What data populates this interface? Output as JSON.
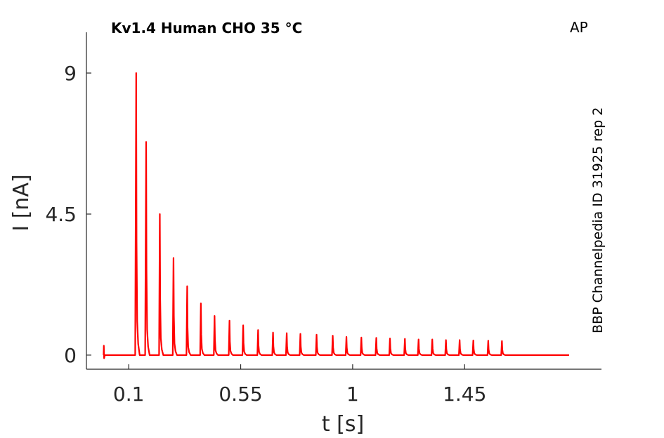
{
  "chart_data": {
    "type": "line",
    "title": "Kv1.4  Human  CHO  35 °C",
    "corner_label": "AP",
    "side_label": "BBP Channelpedia ID 31925 rep 2",
    "xlabel": "t [s]",
    "ylabel": "I [nA]",
    "xlim": [
      -0.07,
      2.0
    ],
    "ylim": [
      -0.45,
      10.3
    ],
    "xticks": [
      0.1,
      0.55,
      1,
      1.45
    ],
    "xtick_labels": [
      "0.1",
      "0.55",
      "1",
      "1.45"
    ],
    "yticks": [
      0,
      4.5,
      9
    ],
    "ytick_labels": [
      "0",
      "4.5",
      "9"
    ],
    "grid": false,
    "series": [
      {
        "color": "#ff0000",
        "baseline": 0.0,
        "x_start": 0.0,
        "x_end": 1.87,
        "initial_artifact": {
          "x": 0.0,
          "top": 0.3,
          "bottom": -0.1
        },
        "spikes": [
          {
            "x": 0.13,
            "peak": 9.0
          },
          {
            "x": 0.17,
            "peak": 6.8
          },
          {
            "x": 0.225,
            "peak": 4.5
          },
          {
            "x": 0.28,
            "peak": 3.1
          },
          {
            "x": 0.335,
            "peak": 2.2
          },
          {
            "x": 0.39,
            "peak": 1.65
          },
          {
            "x": 0.445,
            "peak": 1.25
          },
          {
            "x": 0.505,
            "peak": 1.1
          },
          {
            "x": 0.56,
            "peak": 0.95
          },
          {
            "x": 0.62,
            "peak": 0.8
          },
          {
            "x": 0.68,
            "peak": 0.72
          },
          {
            "x": 0.735,
            "peak": 0.7
          },
          {
            "x": 0.79,
            "peak": 0.68
          },
          {
            "x": 0.855,
            "peak": 0.65
          },
          {
            "x": 0.92,
            "peak": 0.62
          },
          {
            "x": 0.975,
            "peak": 0.58
          },
          {
            "x": 1.035,
            "peak": 0.56
          },
          {
            "x": 1.095,
            "peak": 0.55
          },
          {
            "x": 1.15,
            "peak": 0.53
          },
          {
            "x": 1.21,
            "peak": 0.52
          },
          {
            "x": 1.265,
            "peak": 0.5
          },
          {
            "x": 1.32,
            "peak": 0.5
          },
          {
            "x": 1.375,
            "peak": 0.48
          },
          {
            "x": 1.43,
            "peak": 0.48
          },
          {
            "x": 1.485,
            "peak": 0.47
          },
          {
            "x": 1.545,
            "peak": 0.46
          },
          {
            "x": 1.6,
            "peak": 0.45
          }
        ]
      }
    ]
  }
}
